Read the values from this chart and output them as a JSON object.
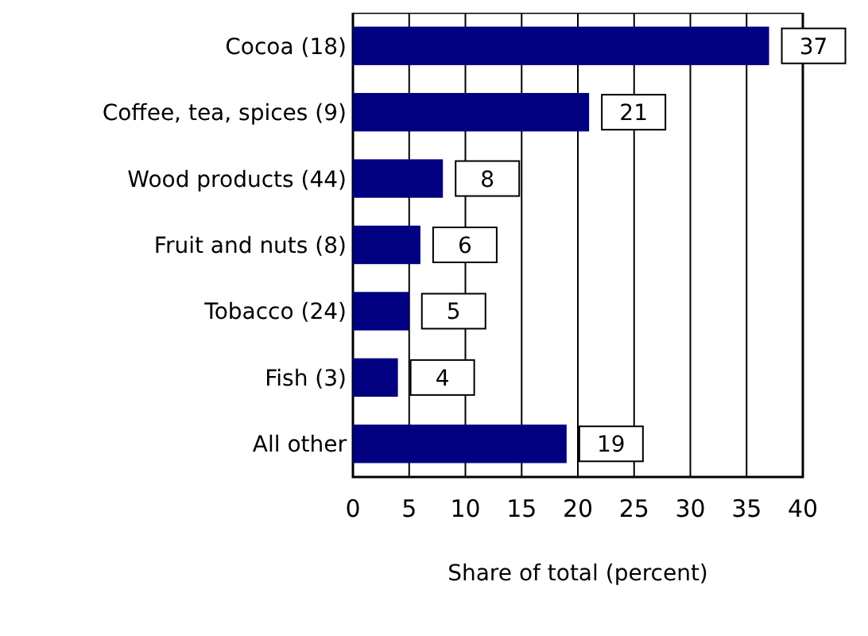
{
  "chart_data": {
    "type": "bar",
    "orientation": "horizontal",
    "categories": [
      "Cocoa (18)",
      "Coffee, tea, spices (9)",
      "Wood products (44)",
      "Fruit and nuts (8)",
      "Tobacco (24)",
      "Fish (3)",
      "All other"
    ],
    "values": [
      37,
      21,
      8,
      6,
      5,
      4,
      19
    ],
    "color": "#000080",
    "xlim": [
      0,
      40
    ],
    "xticks": [
      0,
      5,
      10,
      15,
      20,
      25,
      30,
      35,
      40
    ],
    "xlabel": "Share of total (percent)",
    "grid": "x",
    "data_labels": true
  }
}
